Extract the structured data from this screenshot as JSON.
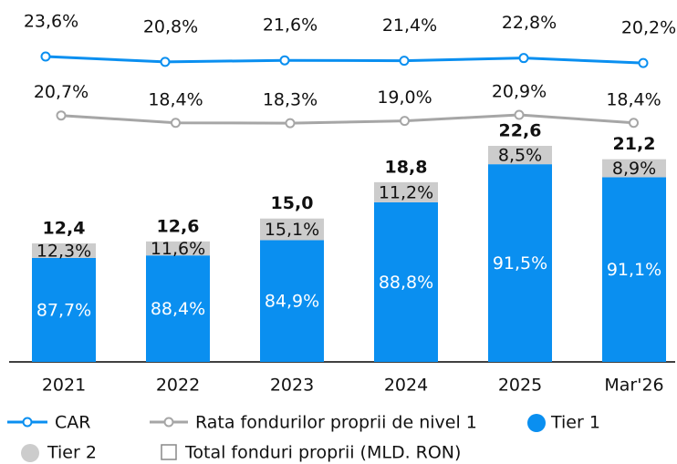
{
  "chart_data": {
    "type": "bar",
    "categories": [
      "2021",
      "2022",
      "2023",
      "2024",
      "2025",
      "Mar'26"
    ],
    "series": [
      {
        "name": "Tier 1",
        "color": "#0a8ff0",
        "values": [
          87.7,
          88.4,
          84.9,
          88.8,
          91.5,
          91.1
        ],
        "value_labels": [
          "87,7%",
          "88,4%",
          "84,9%",
          "88,8%",
          "91,5%",
          "91,1%"
        ]
      },
      {
        "name": "Tier 2",
        "color": "#cccccc",
        "values": [
          12.3,
          11.6,
          15.1,
          11.2,
          8.5,
          8.9
        ],
        "value_labels": [
          "12,3%",
          "11,6%",
          "15,1%",
          "11,2%",
          "8,5%",
          "8,9%"
        ]
      }
    ],
    "totals": {
      "name": "Total fonduri proprii (MLD. RON)",
      "values": [
        12.4,
        12.6,
        15.0,
        18.8,
        22.6,
        21.2
      ],
      "value_labels": [
        "12,4",
        "12,6",
        "15,0",
        "18,8",
        "22,6",
        "21,2"
      ]
    },
    "lines": [
      {
        "name": "CAR",
        "color": "#0a8ff0",
        "values": [
          23.6,
          20.8,
          21.6,
          21.4,
          22.8,
          20.2
        ],
        "value_labels": [
          "23,6%",
          "20,8%",
          "21,6%",
          "21,4%",
          "22,8%",
          "20,2%"
        ]
      },
      {
        "name": "Rata fondurilor proprii de nivel 1",
        "color": "#a6a6a6",
        "values": [
          20.7,
          18.4,
          18.3,
          19.0,
          20.9,
          18.4
        ],
        "value_labels": [
          "20,7%",
          "18,4%",
          "18,3%",
          "19,0%",
          "20,9%",
          "18,4%"
        ]
      }
    ]
  }
}
